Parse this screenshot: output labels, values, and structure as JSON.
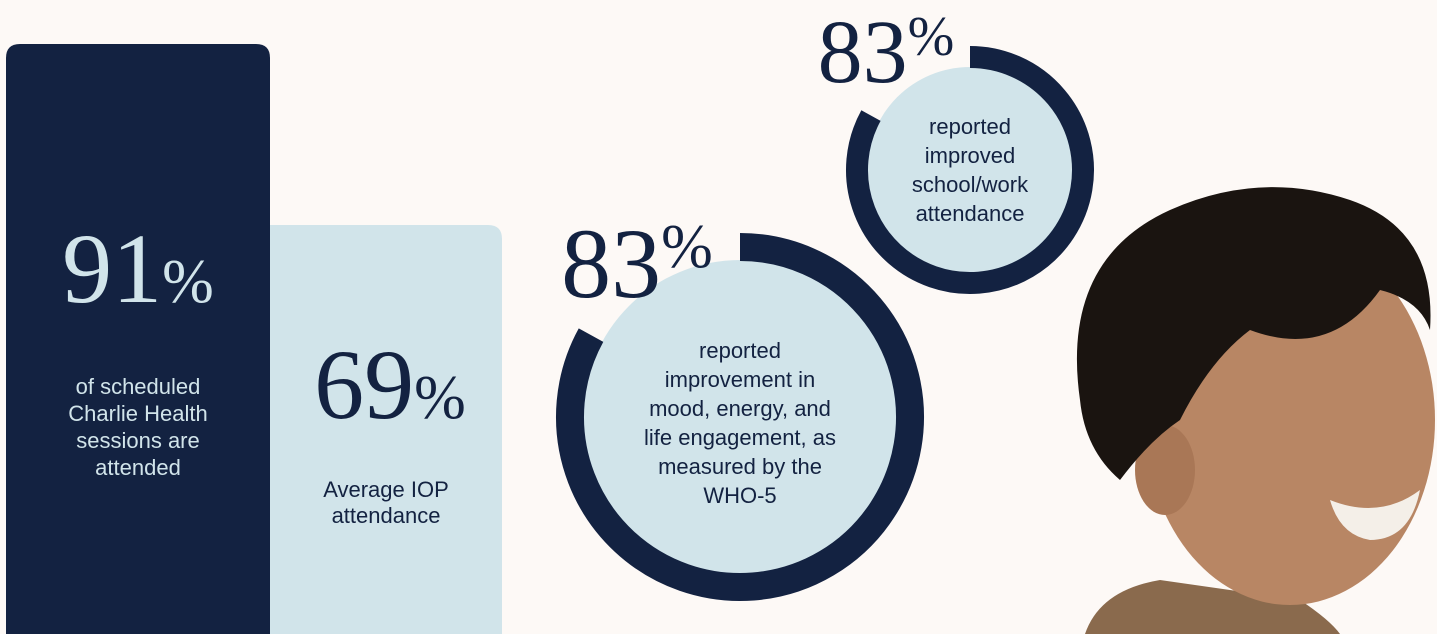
{
  "stats": [
    {
      "number": "91",
      "unit": "%",
      "lines": [
        "of scheduled",
        "Charlie Health",
        "sessions are",
        "attended"
      ]
    },
    {
      "number": "69",
      "unit": "%",
      "lines": [
        "Average IOP",
        "attendance"
      ]
    }
  ],
  "rings": [
    {
      "percent": 83,
      "number": "83",
      "unit": "%",
      "lines": [
        "reported",
        "improvement in",
        "mood, energy, and",
        "life engagement, as",
        "measured by the",
        "WHO-5"
      ]
    },
    {
      "percent": 83,
      "number": "83",
      "unit": "%",
      "lines": [
        "reported",
        "improved",
        "school/work",
        "attendance"
      ]
    }
  ]
}
